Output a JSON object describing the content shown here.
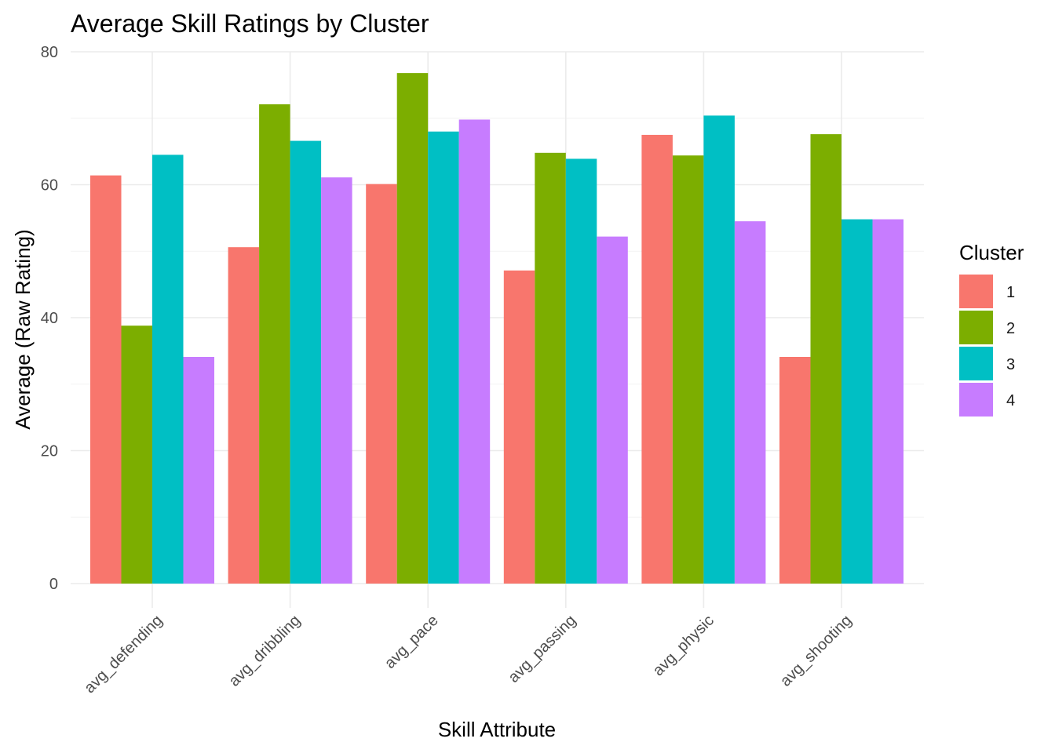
{
  "chart_data": {
    "type": "bar",
    "title": "Average Skill Ratings by Cluster",
    "xlabel": "Skill Attribute",
    "ylabel": "Average (Raw Rating)",
    "ylim": [
      0,
      80
    ],
    "yticks": [
      0,
      20,
      40,
      60,
      80
    ],
    "grid": true,
    "legend_position": "right",
    "legend_title": "Cluster",
    "categories": [
      "avg_defending",
      "avg_dribbling",
      "avg_pace",
      "avg_passing",
      "avg_physic",
      "avg_shooting"
    ],
    "series": [
      {
        "name": "1",
        "color": "#F8766D",
        "values": [
          61.4,
          50.6,
          60.1,
          47.1,
          67.5,
          34.1
        ]
      },
      {
        "name": "2",
        "color": "#7CAE00",
        "values": [
          38.8,
          72.1,
          76.8,
          64.8,
          64.4,
          67.6
        ]
      },
      {
        "name": "3",
        "color": "#00BFC4",
        "values": [
          64.5,
          66.6,
          68.0,
          63.9,
          70.4,
          54.8
        ]
      },
      {
        "name": "4",
        "color": "#C77CFF",
        "values": [
          34.1,
          61.1,
          69.8,
          52.2,
          54.5,
          54.8
        ]
      }
    ]
  }
}
